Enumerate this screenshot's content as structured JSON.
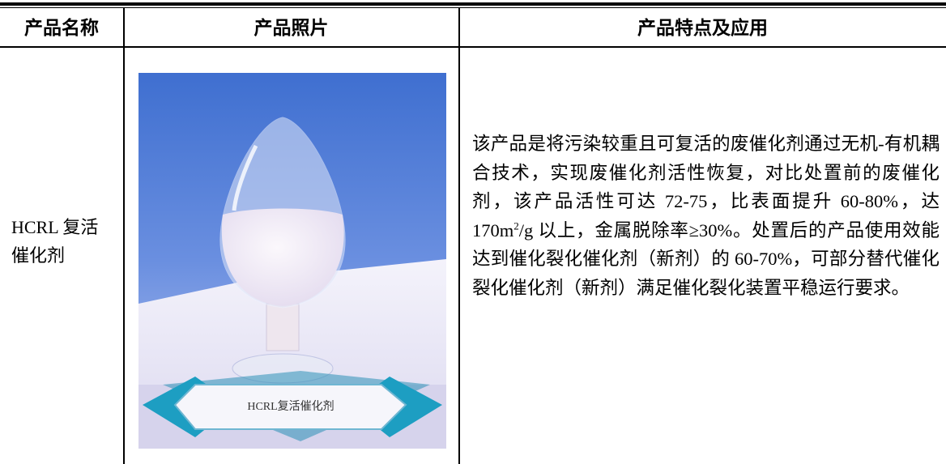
{
  "table": {
    "header": [
      "产品名称",
      "产品照片",
      "产品特点及应用"
    ],
    "rows": [
      {
        "name": "HCRL 复活催化剂",
        "photo_caption": "HCRL复活催化剂",
        "description": [
          "该产品是将污染较重且可复活的废催化剂通过无机-有机耦合技术，实现废催化剂活性恢复，对比处置前的废催化剂，该产品活性可达 72-75，比表面提升 60-80%，达 170m",
          "2",
          "/g 以上，金属脱除率≥30%。处置后的产品使用效能达到催化裂化催化剂（新剂）的 60-70%，可部分替代催化裂化催化剂（新剂）满足催化裂化装置平稳运行要求。"
        ]
      }
    ]
  }
}
